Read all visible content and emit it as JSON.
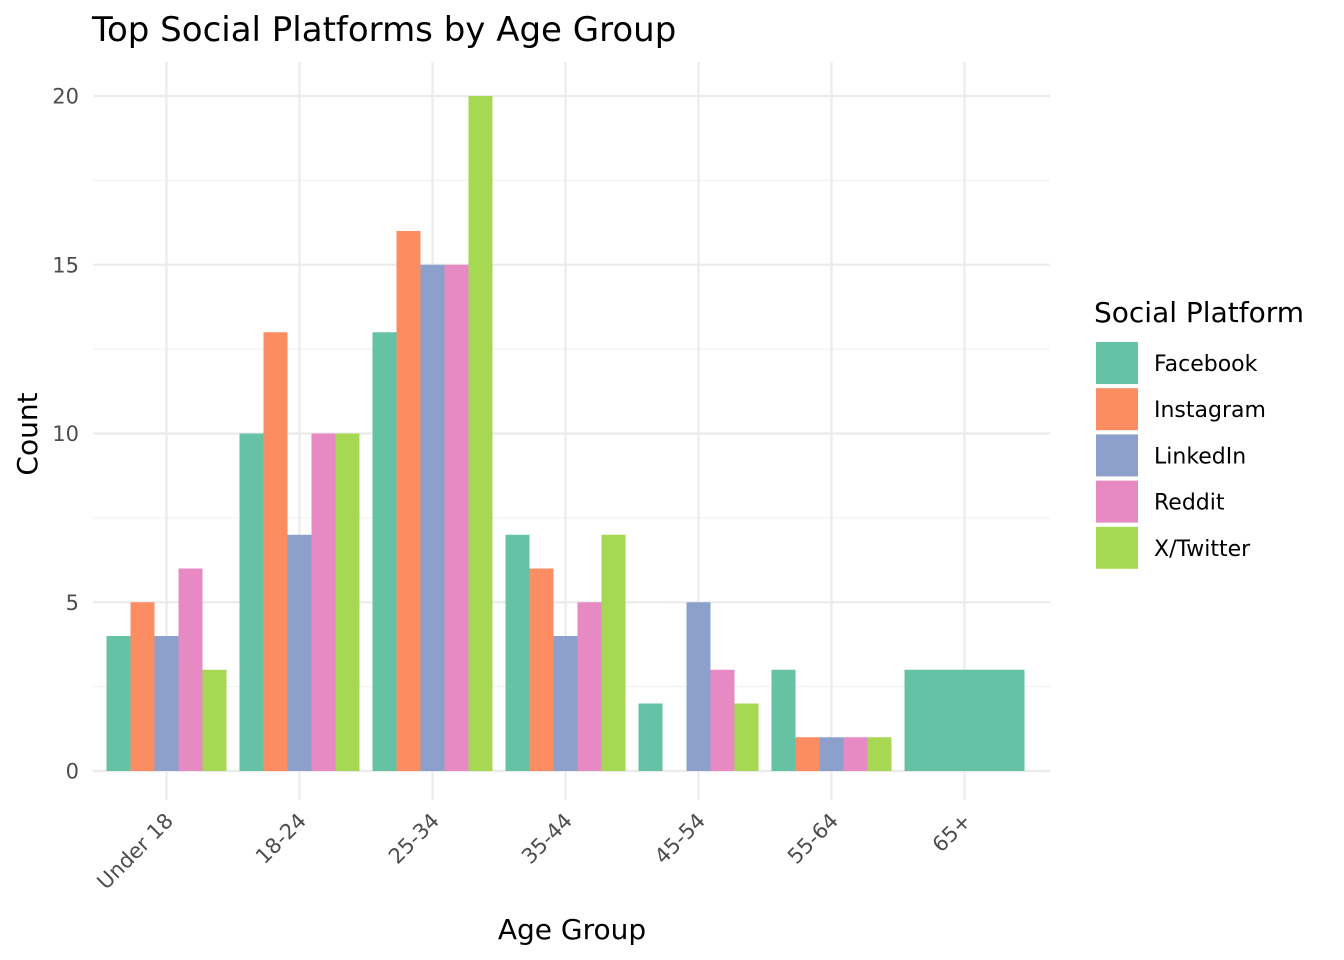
{
  "chart_data": {
    "type": "bar",
    "title": "Top Social Platforms by Age Group",
    "xlabel": "Age Group",
    "ylabel": "Count",
    "ylim": [
      0,
      20
    ],
    "yticks": [
      "0",
      "5",
      "10",
      "15",
      "20"
    ],
    "categories": [
      "Under 18",
      "18-24",
      "25-34",
      "35-44",
      "45-54",
      "55-64",
      "65+"
    ],
    "legend_title": "Social Platform",
    "legend_position": "right",
    "grid": true,
    "series": [
      {
        "name": "Facebook",
        "color": "#66c2a5",
        "values": [
          4,
          10,
          13,
          7,
          2,
          3,
          3
        ]
      },
      {
        "name": "Instagram",
        "color": "#fc8d62",
        "values": [
          5,
          13,
          16,
          6,
          null,
          1,
          null
        ]
      },
      {
        "name": "LinkedIn",
        "color": "#8da0cb",
        "values": [
          4,
          7,
          15,
          4,
          5,
          1,
          null
        ]
      },
      {
        "name": "Reddit",
        "color": "#e78ac3",
        "values": [
          6,
          10,
          15,
          5,
          3,
          1,
          null
        ]
      },
      {
        "name": "X/Twitter",
        "color": "#a6d854",
        "values": [
          3,
          10,
          20,
          7,
          2,
          1,
          null
        ]
      }
    ]
  }
}
